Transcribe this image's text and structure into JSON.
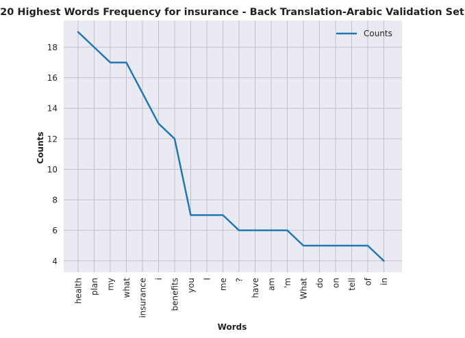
{
  "chart_data": {
    "type": "line",
    "title": "20 Highest Words Frequency for insurance - Back Translation-Arabic Validation Set",
    "xlabel": "Words",
    "ylabel": "Counts",
    "categories": [
      "health",
      "plan",
      "my",
      "what",
      "insurance",
      "i",
      "benefits",
      "you",
      "I",
      "me",
      "?",
      "have",
      "am",
      "'m",
      "What",
      "do",
      "on",
      "tell",
      "of",
      "in"
    ],
    "series": [
      {
        "name": "Counts",
        "values": [
          19,
          18,
          17,
          17,
          15,
          13,
          12,
          7,
          7,
          7,
          6,
          6,
          6,
          6,
          5,
          5,
          5,
          5,
          5,
          4
        ],
        "color": "#1f77b4"
      }
    ],
    "ylim": [
      3.25,
      19.75
    ],
    "yticks": [
      4,
      6,
      8,
      10,
      12,
      14,
      16,
      18
    ],
    "grid": true,
    "legend": "top-right",
    "background": "#eaeaf2",
    "grid_color": "#c0c0c8"
  }
}
